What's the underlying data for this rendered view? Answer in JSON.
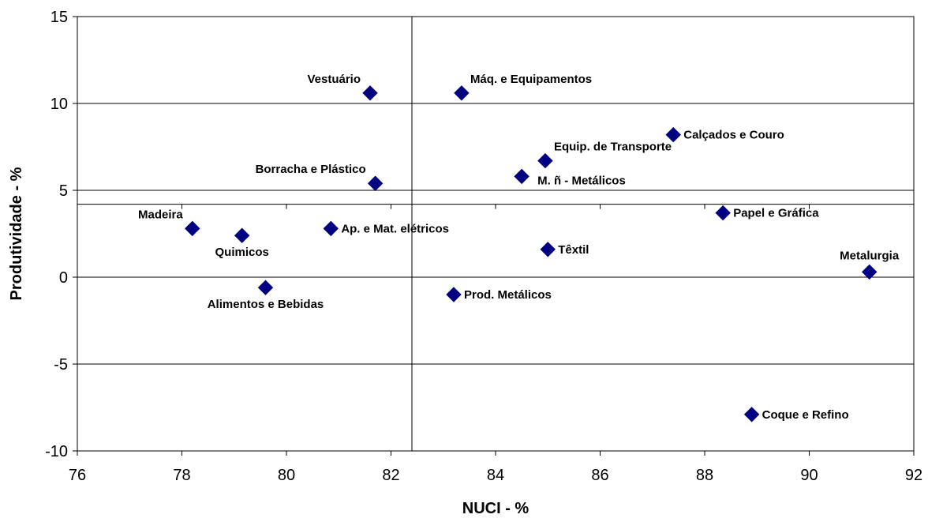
{
  "chart_data": {
    "type": "scatter",
    "title": "",
    "xlabel": "NUCI - %",
    "ylabel": "Produtividade - %",
    "xlim": [
      76,
      92
    ],
    "ylim": [
      -10,
      15
    ],
    "xticks": [
      "76",
      "78",
      "80",
      "82",
      "84",
      "86",
      "88",
      "90",
      "92"
    ],
    "yticks": [
      "-10",
      "-5",
      "0",
      "5",
      "10",
      "15"
    ],
    "grid": "horizontal",
    "reference_lines": {
      "x": 82.4,
      "y": 4.2
    },
    "marker_color": "#000080",
    "marker": "diamond",
    "points": [
      {
        "label": "Vestuário",
        "x": 81.6,
        "y": 10.6,
        "pos": "left-above"
      },
      {
        "label": "Máq. e Equipamentos",
        "x": 83.35,
        "y": 10.6,
        "pos": "right-above"
      },
      {
        "label": "Calçados e Couro",
        "x": 87.4,
        "y": 8.2,
        "pos": "right"
      },
      {
        "label": "Equip. de Transporte",
        "x": 84.95,
        "y": 6.7,
        "pos": "right-above"
      },
      {
        "label": "M. ñ - Metálicos",
        "x": 84.5,
        "y": 5.8,
        "pos": "right-below"
      },
      {
        "label": "Borracha e Plástico",
        "x": 81.7,
        "y": 5.4,
        "pos": "left-above"
      },
      {
        "label": "Madeira",
        "x": 78.2,
        "y": 2.8,
        "pos": "left-above"
      },
      {
        "label": "Quimicos",
        "x": 79.15,
        "y": 2.4,
        "pos": "below"
      },
      {
        "label": "Ap. e Mat. elétricos",
        "x": 80.85,
        "y": 2.8,
        "pos": "right"
      },
      {
        "label": "Papel e Gráfica",
        "x": 88.35,
        "y": 3.7,
        "pos": "right"
      },
      {
        "label": "Têxtil",
        "x": 85.0,
        "y": 1.6,
        "pos": "right"
      },
      {
        "label": "Metalurgia",
        "x": 91.15,
        "y": 0.3,
        "pos": "above"
      },
      {
        "label": "Alimentos e Bebidas",
        "x": 79.6,
        "y": -0.6,
        "pos": "below"
      },
      {
        "label": "Prod. Metálicos",
        "x": 83.2,
        "y": -1.0,
        "pos": "right"
      },
      {
        "label": "Coque e Refino",
        "x": 88.9,
        "y": -7.9,
        "pos": "right"
      }
    ]
  }
}
